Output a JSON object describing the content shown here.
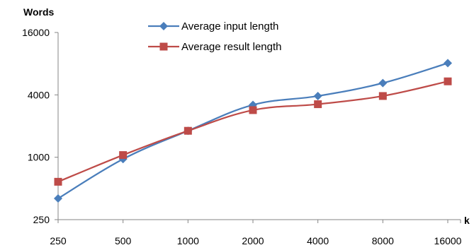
{
  "chart_data": {
    "type": "line",
    "title": "",
    "ylabel": "Words",
    "xlabel": "k",
    "x": [
      "250",
      "500",
      "1000",
      "2000",
      "4000",
      "8000",
      "16000"
    ],
    "y_scale": "log2",
    "ylim": [
      250,
      16000
    ],
    "y_ticks": [
      "250",
      "1000",
      "4000",
      "16000"
    ],
    "grid": false,
    "legend_position": "top-center",
    "series": [
      {
        "name": "Average input length",
        "color": "#4a7ebb",
        "marker": "diamond",
        "values": [
          400,
          960,
          1800,
          3200,
          3900,
          5200,
          8100
        ]
      },
      {
        "name": "Average result length",
        "color": "#be4b48",
        "marker": "square",
        "values": [
          580,
          1050,
          1800,
          2850,
          3250,
          3900,
          5400
        ]
      }
    ]
  }
}
